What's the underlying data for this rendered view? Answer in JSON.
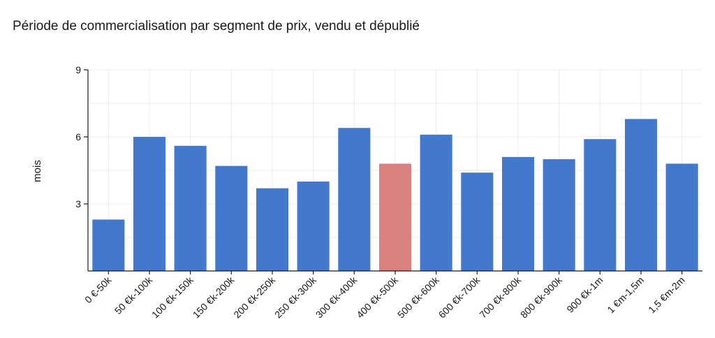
{
  "chart_data": {
    "type": "bar",
    "title": "Période de commercialisation par segment de prix, vendu et dépublié",
    "xlabel": "",
    "ylabel": "mois",
    "ylim": [
      0,
      9
    ],
    "yticks": [
      3,
      6,
      9
    ],
    "grid": true,
    "categories": [
      "0 €-50k",
      "50 €k-100k",
      "100 €k-150k",
      "150 €k-200k",
      "200 €k-250k",
      "250 €k-300k",
      "300 €k-400k",
      "400 €k-500k",
      "500 €k-600k",
      "600 €k-700k",
      "700 €k-800k",
      "800 €k-900k",
      "900 €k-1m",
      "1 €m-1,5m",
      "1,5 €m-2m"
    ],
    "values": [
      2.3,
      6.0,
      5.6,
      4.7,
      3.7,
      4.0,
      6.4,
      4.8,
      6.1,
      4.4,
      5.1,
      5.0,
      5.9,
      6.8,
      4.8
    ],
    "highlight_index": 7,
    "colors": {
      "bar": "#4279cc",
      "highlight": "#d98080",
      "grid": "#ececec",
      "axis": "#1a1a1a"
    }
  }
}
